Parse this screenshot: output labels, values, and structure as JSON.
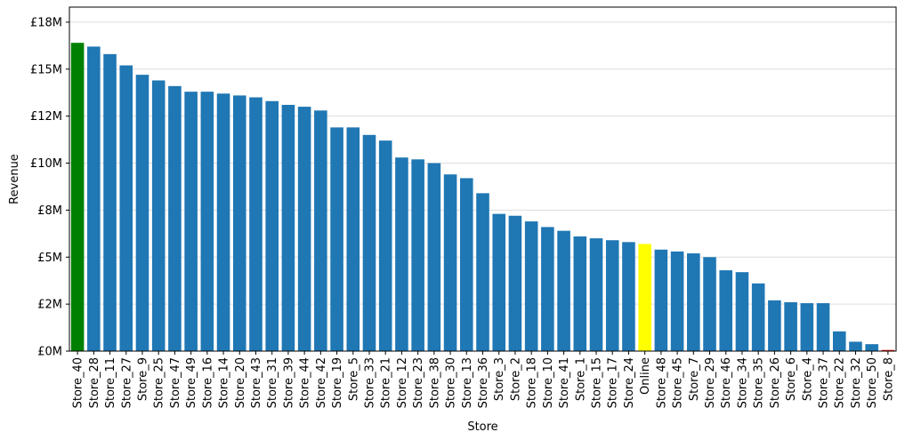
{
  "chart_data": {
    "type": "bar",
    "xlabel": "Store",
    "ylabel": "Revenue",
    "ylim": [
      0,
      18.3
    ],
    "grid": "horizontal",
    "y_ticks": [
      {
        "value": 0,
        "label": "£0M"
      },
      {
        "value": 2.5,
        "label": "£2M"
      },
      {
        "value": 5,
        "label": "£5M"
      },
      {
        "value": 7.5,
        "label": "£8M"
      },
      {
        "value": 10,
        "label": "£10M"
      },
      {
        "value": 12.5,
        "label": "£12M"
      },
      {
        "value": 15,
        "label": "£15M"
      },
      {
        "value": 17.5,
        "label": "£18M"
      }
    ],
    "categories": [
      "Store_40",
      "Store_28",
      "Store_11",
      "Store_27",
      "Store_9",
      "Store_25",
      "Store_47",
      "Store_49",
      "Store_16",
      "Store_14",
      "Store_20",
      "Store_43",
      "Store_31",
      "Store_39",
      "Store_44",
      "Store_42",
      "Store_19",
      "Store_5",
      "Store_33",
      "Store_21",
      "Store_12",
      "Store_23",
      "Store_38",
      "Store_30",
      "Store_13",
      "Store_36",
      "Store_3",
      "Store_2",
      "Store_18",
      "Store_10",
      "Store_41",
      "Store_1",
      "Store_15",
      "Store_17",
      "Store_24",
      "Online",
      "Store_48",
      "Store_45",
      "Store_7",
      "Store_29",
      "Store_46",
      "Store_34",
      "Store_35",
      "Store_26",
      "Store_6",
      "Store_4",
      "Store_37",
      "Store_22",
      "Store_32",
      "Store_50",
      "Store_8"
    ],
    "values": [
      16.4,
      16.2,
      15.8,
      15.2,
      14.7,
      14.4,
      14.1,
      13.8,
      13.8,
      13.7,
      13.6,
      13.5,
      13.3,
      13.1,
      13.0,
      12.8,
      11.9,
      11.9,
      11.5,
      11.2,
      10.3,
      10.2,
      10.0,
      9.4,
      9.2,
      8.4,
      7.3,
      7.2,
      6.9,
      6.6,
      6.4,
      6.1,
      6.0,
      5.9,
      5.8,
      5.7,
      5.4,
      5.3,
      5.2,
      5.0,
      4.3,
      4.2,
      3.6,
      2.7,
      2.6,
      2.55,
      2.55,
      1.05,
      0.5,
      0.37,
      0.06
    ],
    "colors": {
      "default": "#1f77b4",
      "highest": "#008000",
      "online": "#ffff00",
      "lowest": "#ff0000",
      "grid": "#dddddd",
      "axis": "#000000"
    },
    "highlights": {
      "Store_40": "highest",
      "Online": "online",
      "Store_8": "lowest"
    }
  }
}
